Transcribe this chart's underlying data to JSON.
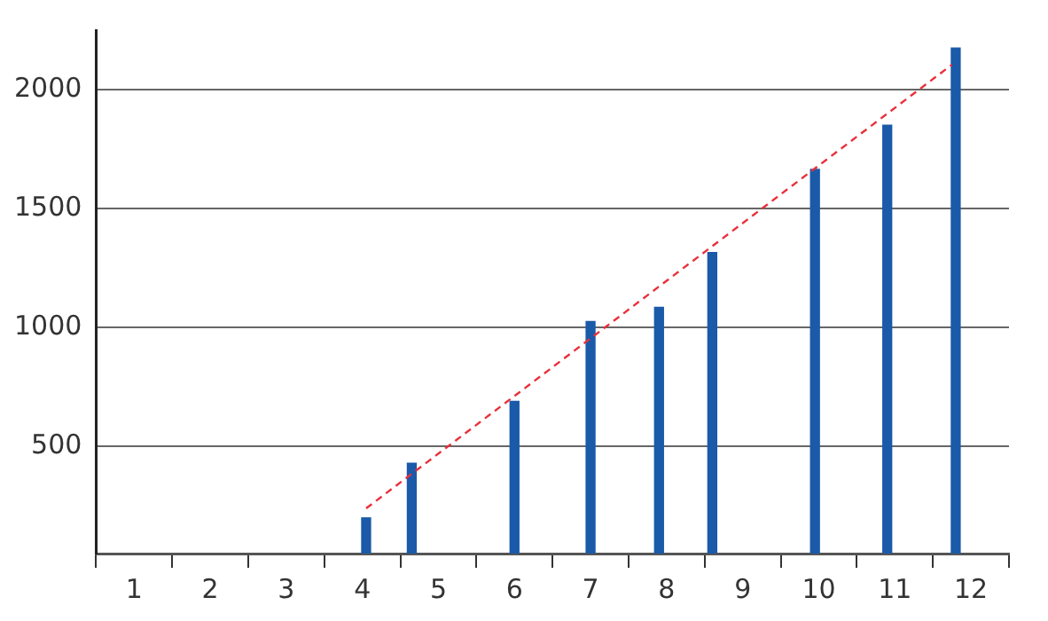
{
  "chart_data": {
    "type": "bar",
    "x": [
      4.05,
      4.65,
      6.0,
      7.0,
      7.9,
      8.6,
      9.95,
      10.9,
      11.8
    ],
    "series": [
      {
        "color": "#1a5aa8",
        "values": [
          200,
          430,
          690,
          1025,
          1085,
          1315,
          1665,
          1850,
          2175
        ]
      },
      {
        "type": "line",
        "color": "#e8303a",
        "line_style": "dashed",
        "marker": "none",
        "x": [
          4.05,
          11.75
        ],
        "values": [
          240,
          2105
        ]
      }
    ],
    "xlim": [
      0.5,
      12.5
    ],
    "xticks": [
      {
        "value": 0.5,
        "label": null
      },
      {
        "value": 1,
        "label": "1"
      },
      {
        "value": 1.5,
        "label": null
      },
      {
        "value": 2,
        "label": "2"
      },
      {
        "value": 2.5,
        "label": null
      },
      {
        "value": 3,
        "label": "3"
      },
      {
        "value": 3.5,
        "label": null
      },
      {
        "value": 4,
        "label": "4"
      },
      {
        "value": 4.5,
        "label": null
      },
      {
        "value": 5,
        "label": "5"
      },
      {
        "value": 5.5,
        "label": null
      },
      {
        "value": 6,
        "label": "6"
      },
      {
        "value": 6.5,
        "label": null
      },
      {
        "value": 7,
        "label": "7"
      },
      {
        "value": 7.5,
        "label": null
      },
      {
        "value": 8,
        "label": "8"
      },
      {
        "value": 8.5,
        "label": null
      },
      {
        "value": 9,
        "label": "9"
      },
      {
        "value": 9.5,
        "label": null
      },
      {
        "value": 10,
        "label": "10"
      },
      {
        "value": 10.5,
        "label": null
      },
      {
        "value": 11,
        "label": "11"
      },
      {
        "value": 11.5,
        "label": null
      },
      {
        "value": 12,
        "label": "12"
      },
      {
        "value": 12.5,
        "label": null
      }
    ],
    "ylim": [
      50,
      2250
    ],
    "yticks": [
      500,
      1000,
      1500,
      2000
    ],
    "grid": "y",
    "legend": false
  }
}
